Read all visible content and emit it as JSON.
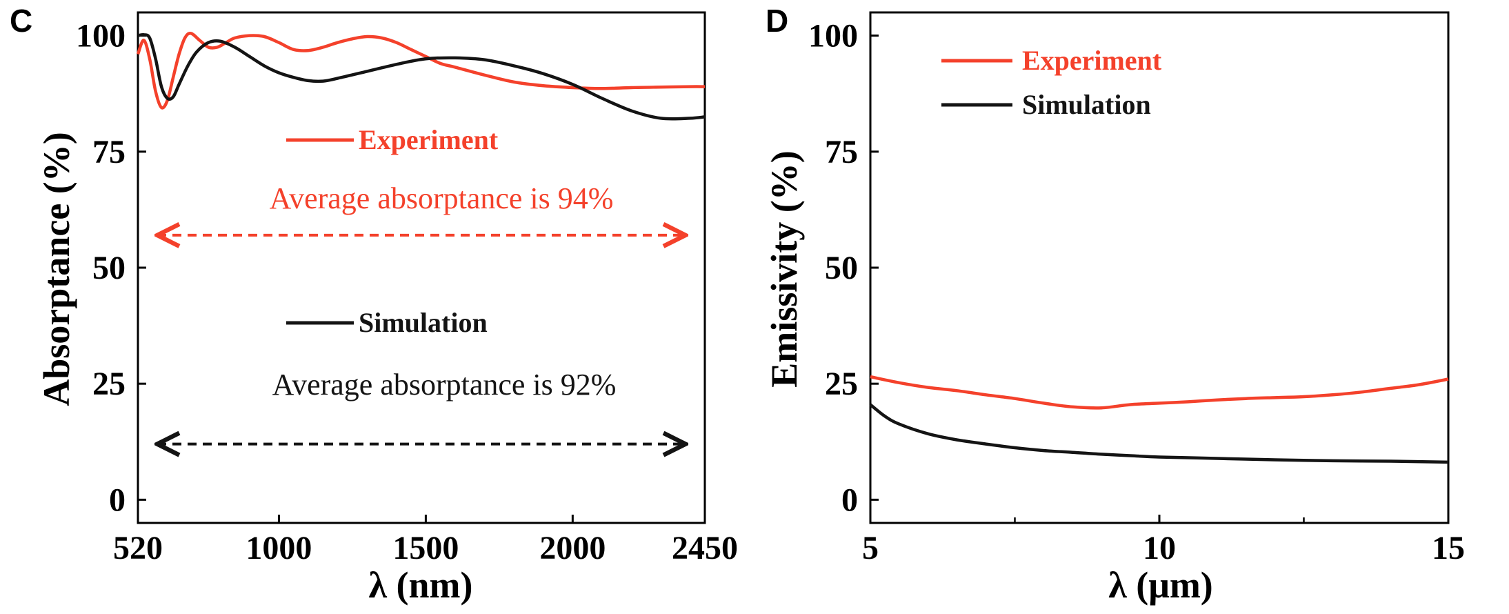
{
  "chart_data": [
    {
      "panel": "C",
      "type": "line",
      "xlabel": "λ (nm)",
      "ylabel": "Absorptance (%)",
      "xlim": [
        520,
        2450
      ],
      "ylim": [
        -5,
        105
      ],
      "xticks": [
        520,
        1000,
        1500,
        2000,
        2450
      ],
      "xtick_labels": [
        "520",
        "1000",
        "1500",
        "2000",
        "2450"
      ],
      "yticks": [
        0,
        25,
        50,
        75,
        100
      ],
      "ytick_labels": [
        "0",
        "25",
        "50",
        "75",
        "100"
      ],
      "grid": false,
      "series": [
        {
          "name": "Experiment",
          "color": "#f4412b",
          "x": [
            520,
            540,
            560,
            580,
            600,
            620,
            640,
            660,
            680,
            700,
            730,
            760,
            790,
            820,
            850,
            900,
            950,
            1000,
            1050,
            1100,
            1150,
            1200,
            1250,
            1300,
            1350,
            1400,
            1450,
            1500,
            1550,
            1600,
            1700,
            1800,
            1900,
            2000,
            2100,
            2200,
            2300,
            2400,
            2450
          ],
          "y": [
            96,
            99,
            95,
            88,
            84.5,
            86,
            91,
            96,
            99.5,
            100.5,
            99,
            97.5,
            97.5,
            98.5,
            99.5,
            100,
            99.8,
            98.5,
            97,
            96.8,
            97.5,
            98.5,
            99.3,
            99.8,
            99.5,
            98.5,
            97,
            95.5,
            94,
            93.2,
            91.5,
            90,
            89.2,
            88.8,
            88.6,
            88.8,
            88.9,
            89,
            89
          ]
        },
        {
          "name": "Simulation",
          "color": "#141414",
          "x": [
            520,
            540,
            560,
            580,
            600,
            620,
            640,
            660,
            690,
            720,
            760,
            800,
            850,
            900,
            950,
            1000,
            1050,
            1100,
            1150,
            1200,
            1300,
            1400,
            1500,
            1600,
            1700,
            1800,
            1900,
            2000,
            2100,
            2200,
            2300,
            2400,
            2450
          ],
          "y": [
            100,
            100.2,
            99.5,
            95,
            89,
            86.5,
            86.8,
            89.5,
            93.5,
            96.5,
            98.5,
            98.8,
            97.5,
            95.5,
            93.5,
            92,
            91,
            90.3,
            90.2,
            90.8,
            92.3,
            93.8,
            95,
            95.2,
            94.8,
            93.5,
            91.8,
            89.5,
            86.5,
            83.8,
            82.2,
            82.2,
            82.5
          ]
        }
      ],
      "legend": [
        "Experiment",
        "Simulation"
      ],
      "annotations": [
        {
          "text": "Average absorptance is 94%",
          "color": "#f4412b",
          "arrow_from": 520,
          "arrow_to": 2450,
          "arrow_y": 57
        },
        {
          "text": "Average absorptance is 92%",
          "color": "#141414",
          "arrow_from": 520,
          "arrow_to": 2450,
          "arrow_y": 12
        }
      ]
    },
    {
      "panel": "D",
      "type": "line",
      "xlabel": "λ (μm)",
      "ylabel": "Emissivity (%)",
      "xlim": [
        5,
        15
      ],
      "ylim": [
        -5,
        105
      ],
      "xticks": [
        5,
        10,
        15
      ],
      "xtick_labels": [
        "5",
        "10",
        "15"
      ],
      "xticks_minor": [
        7.5,
        12.5
      ],
      "yticks": [
        0,
        25,
        50,
        75,
        100
      ],
      "ytick_labels": [
        "0",
        "25",
        "50",
        "75",
        "100"
      ],
      "grid": false,
      "legend_placement": "top-left",
      "series": [
        {
          "name": "Experiment",
          "color": "#f4412b",
          "x": [
            5,
            5.5,
            6,
            6.5,
            7,
            7.5,
            8,
            8.5,
            9,
            9.5,
            10,
            10.5,
            11,
            11.5,
            12,
            12.5,
            13,
            13.5,
            14,
            14.5,
            15
          ],
          "y": [
            26.5,
            25.2,
            24.2,
            23.5,
            22.6,
            21.8,
            20.8,
            20,
            19.8,
            20.5,
            20.8,
            21.1,
            21.5,
            21.8,
            22,
            22.2,
            22.6,
            23.2,
            24,
            24.8,
            26
          ]
        },
        {
          "name": "Simulation",
          "color": "#141414",
          "x": [
            5,
            5.25,
            5.5,
            6,
            6.5,
            7,
            7.5,
            8,
            8.5,
            9,
            9.5,
            10,
            11,
            12,
            13,
            14,
            15
          ],
          "y": [
            20.5,
            18,
            16.3,
            14.2,
            12.9,
            12,
            11.2,
            10.6,
            10.2,
            9.8,
            9.5,
            9.2,
            8.9,
            8.6,
            8.4,
            8.3,
            8.1
          ]
        }
      ],
      "legend": [
        "Experiment",
        "Simulation"
      ]
    }
  ]
}
